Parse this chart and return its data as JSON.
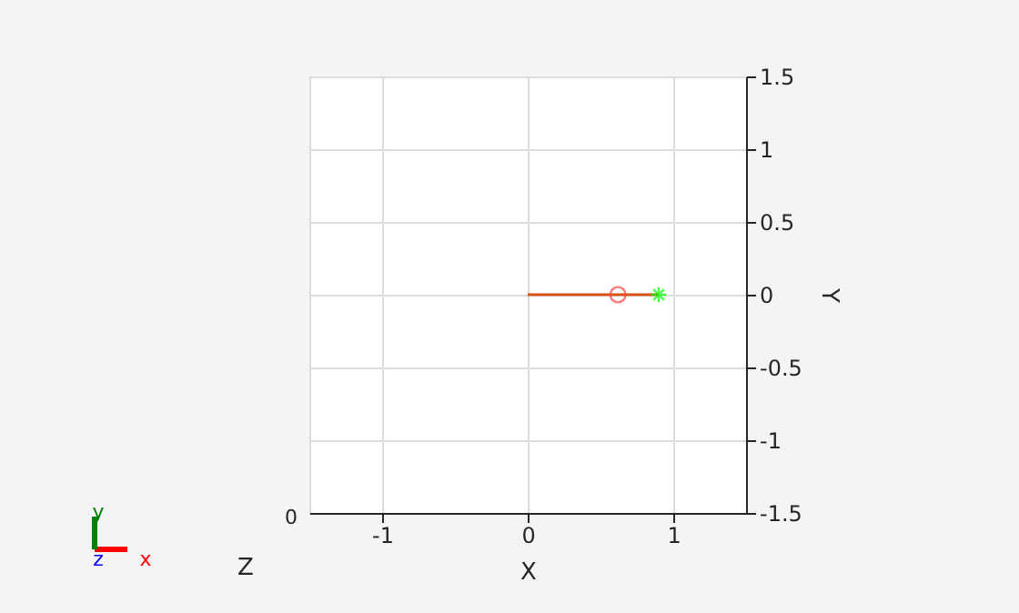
{
  "chart_data": {
    "type": "line",
    "xlabel": "X",
    "ylabel": "Y",
    "xlim": [
      -1.5,
      1.5
    ],
    "ylim": [
      -1.5,
      1.5
    ],
    "xticks": [
      -1,
      0,
      1
    ],
    "yticks": [
      -1.5,
      -1,
      -0.5,
      0,
      0.5,
      1,
      1.5
    ],
    "grid": true,
    "series": [
      {
        "type": "line",
        "color": "#d95319",
        "x": [
          0,
          0.9
        ],
        "values": [
          0,
          0
        ],
        "marker": "none"
      },
      {
        "type": "scatter",
        "color": "#ff4040",
        "x": [
          0.62
        ],
        "values": [
          0
        ],
        "marker": "circle"
      },
      {
        "type": "scatter",
        "color": "#00ff00",
        "x": [
          0.9
        ],
        "values": [
          0
        ],
        "marker": "cross"
      }
    ],
    "annotations": [
      "Z",
      "0",
      "x",
      "y",
      "z"
    ]
  }
}
